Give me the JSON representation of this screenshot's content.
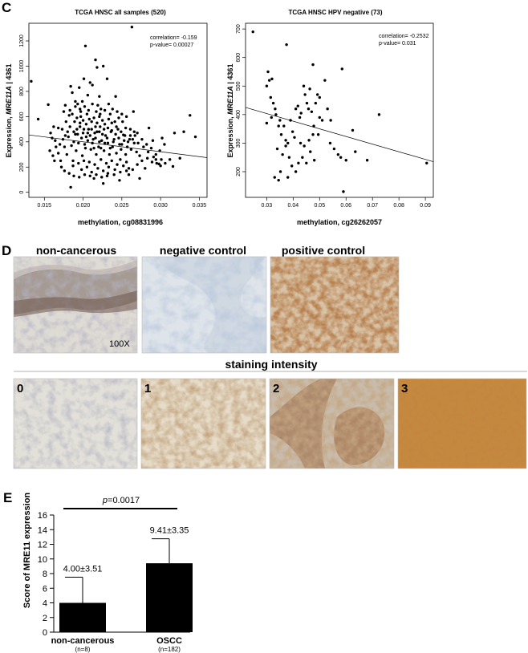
{
  "panels": {
    "c": "C",
    "d": "D",
    "e": "E"
  },
  "chart_data": [
    {
      "type": "scatter",
      "title": "TCGA HNSC all samples (520)",
      "xlabel_prefix": "methylation, ",
      "xlabel_probe": "cg08831996",
      "ylabel_prefix": "Expression, ",
      "ylabel_gene": "MRE11A",
      "ylabel_suffix": " | 4361",
      "xlim": [
        0.013,
        0.036
      ],
      "ylim": [
        -40,
        1340
      ],
      "xticks": [
        0.015,
        0.02,
        0.025,
        0.03,
        0.035
      ],
      "xtick_labels": [
        "0.015",
        "0.020",
        "0.025",
        "0.030",
        "0.035"
      ],
      "yticks": [
        0,
        200,
        400,
        600,
        800,
        1000,
        1200
      ],
      "ytick_labels": [
        "0",
        "200",
        "400",
        "600",
        "800",
        "1000",
        "1200"
      ],
      "annotation_correlation": "correlation= -0.159",
      "annotation_pvalue": "p-value= 0.00027",
      "trendline": {
        "x": [
          0.013,
          0.036
        ],
        "y": [
          455,
          275
        ]
      },
      "points": [
        [
          0.0133,
          880
        ],
        [
          0.0155,
          695
        ],
        [
          0.0142,
          580
        ],
        [
          0.0162,
          520
        ],
        [
          0.0168,
          510
        ],
        [
          0.0177,
          690
        ],
        [
          0.0182,
          610
        ],
        [
          0.0184,
          840
        ],
        [
          0.0186,
          790
        ],
        [
          0.019,
          720
        ],
        [
          0.0195,
          830
        ],
        [
          0.0197,
          640
        ],
        [
          0.0201,
          900
        ],
        [
          0.0203,
          1160
        ],
        [
          0.0206,
          770
        ],
        [
          0.0209,
          870
        ],
        [
          0.0212,
          850
        ],
        [
          0.0216,
          1050
        ],
        [
          0.0218,
          990
        ],
        [
          0.0219,
          690
        ],
        [
          0.0221,
          760
        ],
        [
          0.0223,
          660
        ],
        [
          0.0226,
          1000
        ],
        [
          0.0231,
          900
        ],
        [
          0.0235,
          620
        ],
        [
          0.0242,
          760
        ],
        [
          0.0251,
          560
        ],
        [
          0.0263,
          1310
        ],
        [
          0.0265,
          640
        ],
        [
          0.0285,
          510
        ],
        [
          0.0302,
          430
        ],
        [
          0.0305,
          380
        ],
        [
          0.0318,
          470
        ],
        [
          0.0338,
          610
        ],
        [
          0.0345,
          440
        ],
        [
          0.0325,
          270
        ],
        [
          0.0295,
          230
        ],
        [
          0.028,
          190
        ],
        [
          0.0273,
          110
        ],
        [
          0.0231,
          130
        ],
        [
          0.0184,
          40
        ],
        [
          0.0157,
          330
        ],
        [
          0.0187,
          250
        ],
        [
          0.0205,
          620
        ],
        [
          0.0214,
          110
        ],
        [
          0.0226,
          70
        ],
        [
          0.0247,
          95
        ],
        [
          0.0259,
          140
        ],
        [
          0.0291,
          280
        ],
        [
          0.0298,
          225
        ],
        [
          0.0301,
          260
        ],
        [
          0.0316,
          205
        ],
        [
          0.033,
          480
        ],
        [
          0.027,
          470
        ],
        [
          0.0252,
          455
        ],
        [
          0.026,
          420
        ],
        [
          0.016,
          430
        ],
        [
          0.0164,
          410
        ],
        [
          0.0158,
          470
        ],
        [
          0.0173,
          500
        ],
        [
          0.0176,
          360
        ],
        [
          0.0179,
          300
        ],
        [
          0.0171,
          250
        ],
        [
          0.0168,
          310
        ],
        [
          0.018,
          480
        ],
        [
          0.0183,
          520
        ],
        [
          0.0188,
          400
        ],
        [
          0.0191,
          330
        ],
        [
          0.0193,
          460
        ],
        [
          0.0196,
          550
        ],
        [
          0.0199,
          290
        ],
        [
          0.0202,
          380
        ],
        [
          0.0204,
          440
        ],
        [
          0.0207,
          500
        ],
        [
          0.021,
          340
        ],
        [
          0.0213,
          420
        ],
        [
          0.0215,
          470
        ],
        [
          0.0217,
          300
        ],
        [
          0.022,
          360
        ],
        [
          0.0222,
          520
        ],
        [
          0.0224,
          410
        ],
        [
          0.0227,
          330
        ],
        [
          0.0229,
          450
        ],
        [
          0.0232,
          390
        ],
        [
          0.0234,
          300
        ],
        [
          0.0236,
          480
        ],
        [
          0.0238,
          360
        ],
        [
          0.024,
          420
        ],
        [
          0.0243,
          310
        ],
        [
          0.0245,
          500
        ],
        [
          0.0247,
          380
        ],
        [
          0.0249,
          340
        ],
        [
          0.0253,
          410
        ],
        [
          0.0255,
          300
        ],
        [
          0.0257,
          360
        ],
        [
          0.0262,
          340
        ],
        [
          0.0266,
          390
        ],
        [
          0.0269,
          320
        ],
        [
          0.0273,
          290
        ],
        [
          0.0278,
          360
        ],
        [
          0.0284,
          320
        ],
        [
          0.029,
          410
        ],
        [
          0.0187,
          210
        ],
        [
          0.0194,
          230
        ],
        [
          0.0198,
          180
        ],
        [
          0.0201,
          250
        ],
        [
          0.0205,
          200
        ],
        [
          0.0208,
          240
        ],
        [
          0.0211,
          160
        ],
        [
          0.0215,
          220
        ],
        [
          0.0219,
          190
        ],
        [
          0.0223,
          260
        ],
        [
          0.0226,
          170
        ],
        [
          0.023,
          230
        ],
        [
          0.0233,
          200
        ],
        [
          0.0237,
          250
        ],
        [
          0.0241,
          180
        ],
        [
          0.0244,
          220
        ],
        [
          0.0248,
          260
        ],
        [
          0.0252,
          210
        ],
        [
          0.0256,
          240
        ],
        [
          0.0259,
          190
        ],
        [
          0.0189,
          560
        ],
        [
          0.0192,
          590
        ],
        [
          0.0197,
          600
        ],
        [
          0.02,
          570
        ],
        [
          0.0204,
          540
        ],
        [
          0.0208,
          580
        ],
        [
          0.0211,
          560
        ],
        [
          0.0214,
          590
        ],
        [
          0.0218,
          550
        ],
        [
          0.0221,
          600
        ],
        [
          0.0225,
          570
        ],
        [
          0.0228,
          540
        ],
        [
          0.0233,
          580
        ],
        [
          0.0237,
          550
        ],
        [
          0.0241,
          560
        ],
        [
          0.0246,
          590
        ],
        [
          0.0181,
          440
        ],
        [
          0.0185,
          370
        ],
        [
          0.019,
          460
        ],
        [
          0.0194,
          390
        ],
        [
          0.0198,
          430
        ],
        [
          0.02,
          470
        ],
        [
          0.0203,
          350
        ],
        [
          0.0206,
          410
        ],
        [
          0.0209,
          450
        ],
        [
          0.0212,
          390
        ],
        [
          0.0214,
          350
        ],
        [
          0.0216,
          430
        ],
        [
          0.0218,
          480
        ],
        [
          0.0221,
          400
        ],
        [
          0.0223,
          350
        ],
        [
          0.0225,
          460
        ],
        [
          0.0228,
          390
        ],
        [
          0.0231,
          430
        ],
        [
          0.0235,
          350
        ],
        [
          0.0239,
          400
        ],
        [
          0.0242,
          460
        ],
        [
          0.0246,
          430
        ],
        [
          0.025,
          380
        ],
        [
          0.0254,
          450
        ],
        [
          0.0258,
          400
        ],
        [
          0.0261,
          450
        ],
        [
          0.0264,
          420
        ],
        [
          0.0267,
          450
        ],
        [
          0.0271,
          390
        ],
        [
          0.0276,
          420
        ],
        [
          0.0282,
          380
        ],
        [
          0.0288,
          350
        ],
        [
          0.0294,
          300
        ],
        [
          0.0299,
          330
        ],
        [
          0.0175,
          640
        ],
        [
          0.0178,
          560
        ],
        [
          0.0183,
          650
        ],
        [
          0.0186,
          620
        ],
        [
          0.019,
          680
        ],
        [
          0.0193,
          700
        ],
        [
          0.0196,
          660
        ],
        [
          0.0199,
          720
        ],
        [
          0.0202,
          680
        ],
        [
          0.0207,
          650
        ],
        [
          0.0212,
          700
        ],
        [
          0.0217,
          640
        ],
        [
          0.0222,
          620
        ],
        [
          0.0228,
          650
        ],
        [
          0.0233,
          700
        ],
        [
          0.0238,
          660
        ],
        [
          0.0244,
          640
        ],
        [
          0.025,
          620
        ],
        [
          0.0256,
          600
        ],
        [
          0.017,
          380
        ],
        [
          0.0174,
          420
        ],
        [
          0.0177,
          450
        ],
        [
          0.0165,
          360
        ],
        [
          0.0161,
          290
        ],
        [
          0.0163,
          250
        ],
        [
          0.0172,
          200
        ],
        [
          0.0176,
          170
        ],
        [
          0.0182,
          150
        ],
        [
          0.0188,
          130
        ],
        [
          0.0195,
          120
        ],
        [
          0.0202,
          140
        ],
        [
          0.0209,
          130
        ],
        [
          0.0217,
          140
        ],
        [
          0.0224,
          120
        ],
        [
          0.0232,
          150
        ],
        [
          0.024,
          140
        ],
        [
          0.0248,
          160
        ],
        [
          0.0256,
          170
        ],
        [
          0.0264,
          180
        ],
        [
          0.027,
          220
        ],
        [
          0.0276,
          250
        ],
        [
          0.0283,
          270
        ],
        [
          0.0289,
          240
        ],
        [
          0.0294,
          260
        ],
        [
          0.03,
          210
        ],
        [
          0.0306,
          230
        ],
        [
          0.0312,
          260
        ],
        [
          0.0188,
          480
        ],
        [
          0.0192,
          500
        ],
        [
          0.0196,
          520
        ],
        [
          0.0201,
          500
        ],
        [
          0.0206,
          470
        ],
        [
          0.0211,
          500
        ],
        [
          0.0216,
          520
        ],
        [
          0.0221,
          480
        ],
        [
          0.0227,
          500
        ],
        [
          0.0232,
          510
        ],
        [
          0.0237,
          490
        ],
        [
          0.0243,
          520
        ],
        [
          0.0249,
          480
        ],
        [
          0.0255,
          510
        ],
        [
          0.0261,
          500
        ],
        [
          0.0266,
          480
        ]
      ]
    },
    {
      "type": "scatter",
      "title": "TCGA HNSC HPV negative (73)",
      "xlabel_prefix": "methylation, ",
      "xlabel_probe": "cg26262057",
      "ylabel_prefix": "Expression, ",
      "ylabel_gene": "MRE11A",
      "ylabel_suffix": " | 4361",
      "xlim": [
        0.022,
        0.093
      ],
      "ylim": [
        110,
        720
      ],
      "xticks": [
        0.03,
        0.04,
        0.05,
        0.06,
        0.07,
        0.08,
        0.09
      ],
      "xtick_labels": [
        "0.03",
        "0.04",
        "0.05",
        "0.06",
        "0.07",
        "0.08",
        "0.09"
      ],
      "yticks": [
        200,
        300,
        400,
        500,
        600,
        700
      ],
      "ytick_labels": [
        "200",
        "300",
        "400",
        "500",
        "600",
        "700"
      ],
      "annotation_correlation": "correlation= -0.2532",
      "annotation_pvalue": "p-value= 0.031",
      "trendline": {
        "x": [
          0.022,
          0.093
        ],
        "y": [
          425,
          235
        ]
      },
      "points": [
        [
          0.0248,
          690
        ],
        [
          0.0375,
          645
        ],
        [
          0.0475,
          575
        ],
        [
          0.0585,
          560
        ],
        [
          0.0305,
          550
        ],
        [
          0.031,
          520
        ],
        [
          0.032,
          525
        ],
        [
          0.03,
          500
        ],
        [
          0.0315,
          460
        ],
        [
          0.0325,
          440
        ],
        [
          0.0332,
          420
        ],
        [
          0.0345,
          360
        ],
        [
          0.0355,
          330
        ],
        [
          0.0365,
          360
        ],
        [
          0.0372,
          310
        ],
        [
          0.038,
          300
        ],
        [
          0.039,
          380
        ],
        [
          0.0398,
          340
        ],
        [
          0.041,
          420
        ],
        [
          0.0418,
          430
        ],
        [
          0.0425,
          390
        ],
        [
          0.043,
          405
        ],
        [
          0.044,
          500
        ],
        [
          0.0445,
          470
        ],
        [
          0.0452,
          440
        ],
        [
          0.0458,
          420
        ],
        [
          0.0463,
          490
        ],
        [
          0.047,
          410
        ],
        [
          0.0478,
          360
        ],
        [
          0.0485,
          440
        ],
        [
          0.0492,
          470
        ],
        [
          0.05,
          460
        ],
        [
          0.051,
          380
        ],
        [
          0.052,
          520
        ],
        [
          0.054,
          300
        ],
        [
          0.0555,
          280
        ],
        [
          0.057,
          260
        ],
        [
          0.058,
          250
        ],
        [
          0.06,
          240
        ],
        [
          0.0625,
          345
        ],
        [
          0.0635,
          270
        ],
        [
          0.068,
          240
        ],
        [
          0.0725,
          400
        ],
        [
          0.0905,
          230
        ],
        [
          0.059,
          130
        ],
        [
          0.033,
          180
        ],
        [
          0.0345,
          170
        ],
        [
          0.0352,
          200
        ],
        [
          0.038,
          180
        ],
        [
          0.0395,
          220
        ],
        [
          0.041,
          200
        ],
        [
          0.042,
          230
        ],
        [
          0.0435,
          250
        ],
        [
          0.045,
          230
        ],
        [
          0.0465,
          270
        ],
        [
          0.048,
          240
        ],
        [
          0.0495,
          330
        ],
        [
          0.034,
          280
        ],
        [
          0.036,
          260
        ],
        [
          0.0372,
          290
        ],
        [
          0.0385,
          250
        ],
        [
          0.03,
          370
        ],
        [
          0.0318,
          390
        ],
        [
          0.0335,
          400
        ],
        [
          0.035,
          380
        ],
        [
          0.0405,
          320
        ],
        [
          0.0428,
          300
        ],
        [
          0.0442,
          290
        ],
        [
          0.046,
          310
        ],
        [
          0.0475,
          330
        ],
        [
          0.05,
          390
        ],
        [
          0.053,
          420
        ],
        [
          0.0542,
          380
        ]
      ]
    },
    {
      "type": "bar",
      "ylabel": "Score of MRE11 expression",
      "ylim": [
        0,
        16
      ],
      "yticks": [
        0,
        2,
        4,
        6,
        8,
        10,
        12,
        14,
        16
      ],
      "ytick_labels": [
        "0",
        "2",
        "4",
        "6",
        "8",
        "10",
        "12",
        "14",
        "16"
      ],
      "categories": [
        "non-cancerous",
        "OSCC"
      ],
      "category_n": [
        "(n=8)",
        "(n=182)"
      ],
      "values": [
        4.0,
        9.41
      ],
      "errors": [
        3.51,
        3.35
      ],
      "value_labels": [
        "4.00±3.51",
        "9.41±3.35"
      ],
      "significance_p": "p",
      "significance_value": "=0.0017"
    }
  ],
  "panel_d": {
    "top_labels": [
      "non-cancerous",
      "negative control",
      "positive control"
    ],
    "magnification": "100X",
    "intensity_title": "staining intensity",
    "intensity_levels": [
      "0",
      "1",
      "2",
      "3"
    ]
  }
}
